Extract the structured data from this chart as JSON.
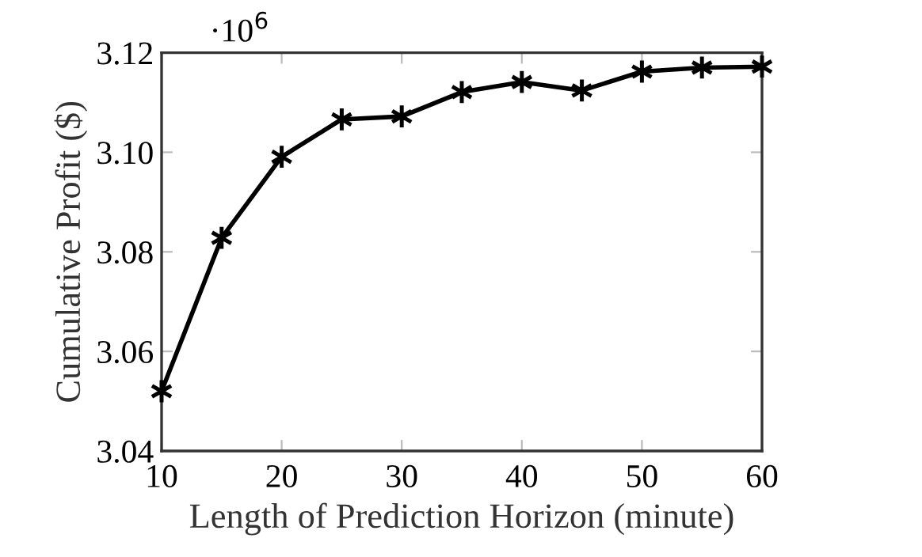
{
  "chart_data": {
    "type": "line",
    "xlabel": "Length of Prediction Horizon (minute)",
    "ylabel": "Cumulative Profit ($)",
    "annotations": [
      "·10$^{6}$"
    ],
    "x": [
      10,
      15,
      20,
      25,
      30,
      35,
      40,
      45,
      50,
      55,
      60
    ],
    "series": [
      {
        "color": "#000000",
        "values": [
          3.052,
          3.0828,
          3.0991,
          3.1066,
          3.1072,
          3.1121,
          3.1141,
          3.1124,
          3.1162,
          3.117,
          3.1172
        ]
      }
    ],
    "xlim": [
      10,
      60
    ],
    "xticks": [
      10,
      20,
      30,
      40,
      50,
      60
    ],
    "ylim": [
      3.04,
      3.12
    ],
    "yticks": [
      {
        "value": 3.04,
        "label": "3.04"
      },
      {
        "value": 3.06,
        "label": "3.06"
      },
      {
        "value": 3.08,
        "label": "3.08"
      },
      {
        "value": 3.1,
        "label": "3.10"
      },
      {
        "value": 3.12,
        "label": "3.12"
      }
    ],
    "marker": "cross",
    "line_style": "solid",
    "grid": false
  }
}
